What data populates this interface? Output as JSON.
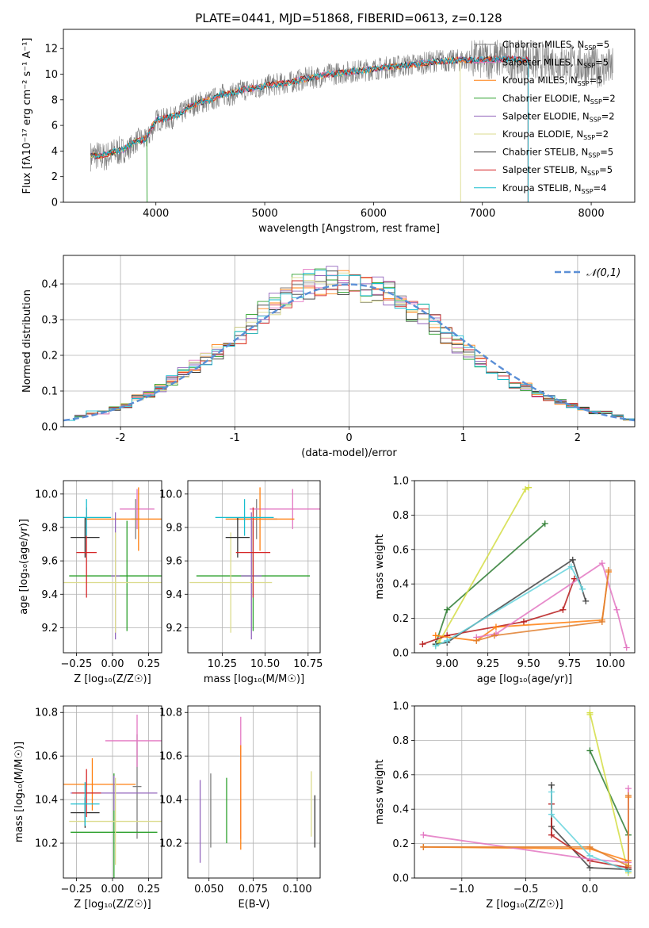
{
  "title": "PLATE=0441, MJD=51868, FIBERID=0613, z=0.128",
  "models": [
    {
      "name": "Chabrier MILES",
      "nssp": "5",
      "color": "#7f7f7f"
    },
    {
      "name": "Salpeter MILES",
      "nssp": "5",
      "color": "#e377c2"
    },
    {
      "name": "Kroupa MILES",
      "nssp": "5",
      "color": "#ff7f0e"
    },
    {
      "name": "Chabrier ELODIE",
      "nssp": "2",
      "color": "#2ca02c"
    },
    {
      "name": "Salpeter ELODIE",
      "nssp": "2",
      "color": "#9467bd"
    },
    {
      "name": "Kroupa ELODIE",
      "nssp": "2",
      "color": "#dbdb8d"
    },
    {
      "name": "Chabrier STELIB",
      "nssp": "5",
      "color": "#333333"
    },
    {
      "name": "Salpeter STELIB",
      "nssp": "5",
      "color": "#d62728"
    },
    {
      "name": "Kroupa STELIB",
      "nssp": "4",
      "color": "#17becf"
    }
  ],
  "chart_data": [
    {
      "id": "spectrum",
      "type": "line",
      "xlabel": "wavelength [Angstrom, rest frame]",
      "ylabel": "Flux [fλ10⁻¹⁷ erg cm⁻² s⁻¹ A⁻¹]",
      "xlim": [
        3150,
        8400
      ],
      "ylim": [
        0,
        13.5
      ],
      "xticks": [
        4000,
        5000,
        6000,
        7000,
        8000
      ],
      "yticks": [
        0,
        2,
        4,
        6,
        8,
        10,
        12
      ],
      "data_color": "#7f7f7f",
      "data_x": [
        3400,
        3450,
        3500,
        3550,
        3600,
        3650,
        3700,
        3750,
        3800,
        3850,
        3900,
        3950,
        4000,
        4100,
        4200,
        4300,
        4400,
        4500,
        4600,
        4700,
        4800,
        4900,
        5000,
        5100,
        5200,
        5300,
        5400,
        5500,
        5600,
        5700,
        5800,
        5900,
        6000,
        6100,
        6200,
        6300,
        6400,
        6500,
        6600,
        6700,
        6800,
        6900,
        7000,
        7100,
        7200,
        7300,
        7400,
        7500,
        7600,
        7700,
        7800,
        7900,
        8000,
        8100,
        8200
      ],
      "data_y": [
        3.6,
        3.7,
        3.5,
        3.6,
        3.8,
        4.0,
        3.9,
        4.2,
        4.6,
        5.0,
        4.8,
        5.3,
        6.4,
        6.5,
        6.7,
        7.4,
        7.8,
        7.9,
        8.4,
        8.4,
        8.8,
        8.8,
        9.1,
        9.2,
        9.3,
        9.5,
        9.7,
        9.8,
        10.0,
        10.1,
        10.2,
        10.3,
        10.4,
        10.5,
        10.6,
        10.7,
        10.8,
        10.9,
        11.1,
        11.0,
        11.1,
        11.1,
        11.1,
        11.2,
        11.2,
        11.0,
        11.1,
        11.0,
        11.0,
        10.9,
        10.8,
        10.7,
        10.6,
        10.5,
        10.5
      ],
      "model_x": [
        3400,
        3500,
        3600,
        3700,
        3800,
        3900,
        4000,
        4100,
        4200,
        4300,
        4400,
        4500,
        4600,
        4700,
        4800,
        4900,
        5000,
        5200,
        5400,
        5600,
        5800,
        6000,
        6200,
        6400,
        6600,
        6800,
        7000,
        7200,
        7400
      ],
      "model_y": [
        3.6,
        3.6,
        3.9,
        4.1,
        4.7,
        4.9,
        6.4,
        6.6,
        6.8,
        7.4,
        7.8,
        8.0,
        8.4,
        8.5,
        8.8,
        8.9,
        9.1,
        9.3,
        9.7,
        10.0,
        10.2,
        10.4,
        10.6,
        10.8,
        11.0,
        11.1,
        11.1,
        11.2,
        11.1
      ],
      "model_end": [
        7420,
        7420,
        7420,
        3920,
        7420,
        6800,
        7420,
        7420,
        7420
      ]
    },
    {
      "id": "residuals",
      "type": "bar",
      "xlabel": "(data-model)/error",
      "ylabel": "Normed distribution",
      "xlim": [
        -2.5,
        2.5
      ],
      "ylim": [
        0,
        0.48
      ],
      "xticks": [
        -2,
        -1,
        0,
        1,
        2
      ],
      "yticks": [
        0.0,
        0.1,
        0.2,
        0.3,
        0.4
      ],
      "legend": "𝒩(0,1)",
      "bin_width": 0.1,
      "bin_centers": [
        -2.45,
        -2.35,
        -2.25,
        -2.15,
        -2.05,
        -1.95,
        -1.85,
        -1.75,
        -1.65,
        -1.55,
        -1.45,
        -1.35,
        -1.25,
        -1.15,
        -1.05,
        -0.95,
        -0.85,
        -0.75,
        -0.65,
        -0.55,
        -0.45,
        -0.35,
        -0.25,
        -0.15,
        -0.05,
        0.05,
        0.15,
        0.25,
        0.35,
        0.45,
        0.55,
        0.65,
        0.75,
        0.85,
        0.95,
        1.05,
        1.15,
        1.25,
        1.35,
        1.45,
        1.55,
        1.65,
        1.75,
        1.85,
        1.95,
        2.05,
        2.15,
        2.25,
        2.35,
        2.45
      ],
      "histogram": [
        0.02,
        0.03,
        0.04,
        0.04,
        0.05,
        0.06,
        0.08,
        0.09,
        0.11,
        0.13,
        0.15,
        0.17,
        0.19,
        0.21,
        0.23,
        0.26,
        0.29,
        0.32,
        0.34,
        0.37,
        0.39,
        0.4,
        0.41,
        0.41,
        0.4,
        0.4,
        0.39,
        0.38,
        0.37,
        0.35,
        0.33,
        0.31,
        0.29,
        0.26,
        0.23,
        0.21,
        0.18,
        0.16,
        0.14,
        0.12,
        0.11,
        0.09,
        0.08,
        0.07,
        0.06,
        0.05,
        0.04,
        0.04,
        0.03,
        0.02
      ],
      "normal_color": "#5b8fd6"
    },
    {
      "id": "age-vs-z",
      "type": "scatter",
      "xlabel": "Z [log₁₀(Z/Z☉)]",
      "ylabel": "age  [log₁₀(age/yr)]",
      "xlim": [
        -0.34,
        0.34
      ],
      "ylim": [
        9.05,
        10.08
      ],
      "xticks": [
        -0.25,
        0.0,
        0.25
      ],
      "xticklabels": [
        "−0.25",
        "0.00",
        "0.25"
      ],
      "yticks": [
        9.2,
        9.4,
        9.6,
        9.8,
        10.0
      ],
      "points": [
        {
          "x": 0.16,
          "y": 9.85,
          "xerr": 0.03,
          "yerr": 0.12
        },
        {
          "x": 0.17,
          "y": 9.91,
          "xerr": 0.12,
          "yerr": 0.12
        },
        {
          "x": 0.18,
          "y": 9.85,
          "xerr": 0.37,
          "yerr": 0.19
        },
        {
          "x": 0.1,
          "y": 9.51,
          "xerr": 0.4,
          "yerr": 0.33
        },
        {
          "x": 0.02,
          "y": 9.51,
          "xerr": 0.03,
          "yerr": 0.38
        },
        {
          "x": 0.02,
          "y": 9.47,
          "xerr": 0.46,
          "yerr": 0.3
        },
        {
          "x": -0.19,
          "y": 9.74,
          "xerr": 0.1,
          "yerr": 0.12
        },
        {
          "x": -0.18,
          "y": 9.65,
          "xerr": 0.07,
          "yerr": 0.27
        },
        {
          "x": -0.18,
          "y": 9.86,
          "xerr": 0.17,
          "yerr": 0.11
        }
      ]
    },
    {
      "id": "age-vs-mass",
      "type": "scatter",
      "xlabel": "mass [log₁₀(M/M☉)]",
      "ylabel": "",
      "xlim": [
        10.05,
        10.82
      ],
      "ylim": [
        9.05,
        10.08
      ],
      "xticks": [
        10.25,
        10.5,
        10.75
      ],
      "xticklabels": [
        "10.25",
        "10.50",
        "10.75"
      ],
      "yticks": [
        9.2,
        9.4,
        9.6,
        9.8,
        10.0
      ],
      "points": [
        {
          "x": 10.45,
          "y": 9.85,
          "xerr": 0.12,
          "yerr": 0.12
        },
        {
          "x": 10.66,
          "y": 9.91,
          "xerr": 0.25,
          "yerr": 0.12
        },
        {
          "x": 10.47,
          "y": 9.85,
          "xerr": 0.2,
          "yerr": 0.19
        },
        {
          "x": 10.43,
          "y": 9.51,
          "xerr": 0.33,
          "yerr": 0.33
        },
        {
          "x": 10.42,
          "y": 9.51,
          "xerr": 0.06,
          "yerr": 0.38
        },
        {
          "x": 10.3,
          "y": 9.47,
          "xerr": 0.24,
          "yerr": 0.3
        },
        {
          "x": 10.34,
          "y": 9.74,
          "xerr": 0.07,
          "yerr": 0.12
        },
        {
          "x": 10.43,
          "y": 9.65,
          "xerr": 0.1,
          "yerr": 0.27
        },
        {
          "x": 10.38,
          "y": 9.86,
          "xerr": 0.17,
          "yerr": 0.11
        }
      ]
    },
    {
      "id": "weight-vs-age",
      "type": "line",
      "xlabel": "age  [log₁₀(age/yr)]",
      "ylabel": "mass weight",
      "xlim": [
        8.8,
        10.15
      ],
      "ylim": [
        0,
        1
      ],
      "xticks": [
        9.0,
        9.25,
        9.5,
        9.75,
        10.0
      ],
      "xticklabels": [
        "9.00",
        "9.25",
        "9.50",
        "9.75",
        "10.00"
      ],
      "yticks": [
        0.0,
        0.2,
        0.4,
        0.6,
        0.8,
        1.0
      ],
      "series": [
        {
          "x": [
            8.93,
            9.0,
            9.6
          ],
          "y": [
            0.05,
            0.25,
            0.75
          ]
        },
        {
          "x": [
            8.93,
            8.95,
            9.48,
            9.5
          ],
          "y": [
            0.04,
            0.06,
            0.95,
            0.96
          ]
        },
        {
          "x": [
            8.93,
            9.0,
            9.77,
            9.85
          ],
          "y": [
            0.05,
            0.06,
            0.54,
            0.3
          ]
        },
        {
          "x": [
            8.85,
            9.0,
            9.47,
            9.71,
            9.78
          ],
          "y": [
            0.05,
            0.1,
            0.18,
            0.25,
            0.43
          ]
        },
        {
          "x": [
            8.93,
            9.18,
            9.3,
            9.95,
            9.99
          ],
          "y": [
            0.1,
            0.07,
            0.15,
            0.19,
            0.47
          ]
        },
        {
          "x": [
            9.18,
            9.3,
            9.95,
            10.04,
            10.1
          ],
          "y": [
            0.09,
            0.11,
            0.52,
            0.25,
            0.03
          ]
        },
        {
          "x": [
            9.18,
            9.29,
            9.95,
            9.99
          ],
          "y": [
            0.07,
            0.1,
            0.18,
            0.48
          ]
        },
        {
          "x": [
            8.93,
            9.0,
            9.76,
            9.83
          ],
          "y": [
            0.04,
            0.07,
            0.5,
            0.37
          ]
        }
      ]
    },
    {
      "id": "mass-vs-z",
      "type": "scatter",
      "xlabel": "Z [log₁₀(Z/Z☉)]",
      "ylabel": "mass [log₁₀(M/M☉)]",
      "xlim": [
        -0.34,
        0.34
      ],
      "ylim": [
        10.04,
        10.83
      ],
      "xticks": [
        -0.25,
        0.0,
        0.25
      ],
      "xticklabels": [
        "−0.25",
        "0.00",
        "0.25"
      ],
      "yticks": [
        10.2,
        10.4,
        10.6,
        10.8
      ],
      "points": [
        {
          "x": 0.17,
          "y": 10.46,
          "xerr": 0.03,
          "yerr": 0.24
        },
        {
          "x": 0.17,
          "y": 10.67,
          "xerr": 0.22,
          "yerr": 0.12
        },
        {
          "x": -0.14,
          "y": 10.47,
          "xerr": 0.3,
          "yerr": 0.12
        },
        {
          "x": 0.01,
          "y": 10.25,
          "xerr": 0.3,
          "yerr": 0.27
        },
        {
          "x": 0.01,
          "y": 10.43,
          "xerr": 0.3,
          "yerr": 0.08
        },
        {
          "x": 0.02,
          "y": 10.3,
          "xerr": 0.32,
          "yerr": 0.2
        },
        {
          "x": -0.19,
          "y": 10.34,
          "xerr": 0.1,
          "yerr": 0.07
        },
        {
          "x": -0.18,
          "y": 10.43,
          "xerr": 0.1,
          "yerr": 0.11
        },
        {
          "x": -0.19,
          "y": 10.38,
          "xerr": 0.1,
          "yerr": 0.1
        }
      ]
    },
    {
      "id": "mass-vs-ebv",
      "type": "scatter",
      "xlabel": "E(B-V)",
      "ylabel": "",
      "xlim": [
        0.038,
        0.113
      ],
      "ylim": [
        10.04,
        10.83
      ],
      "xticks": [
        0.05,
        0.075,
        0.1
      ],
      "xticklabels": [
        "0.050",
        "0.075",
        "0.100"
      ],
      "yticks": [
        10.2,
        10.4,
        10.6,
        10.8
      ],
      "points": [
        {
          "x": 0.051,
          "y": 10.35,
          "xerr": 0,
          "yerr": 0.17
        },
        {
          "x": 0.068,
          "y": 10.5,
          "xerr": 0,
          "yerr": 0.28
        },
        {
          "x": 0.068,
          "y": 10.41,
          "xerr": 0,
          "yerr": 0.24
        },
        {
          "x": 0.06,
          "y": 10.35,
          "xerr": 0,
          "yerr": 0.15
        },
        {
          "x": 0.045,
          "y": 10.3,
          "xerr": 0,
          "yerr": 0.19
        },
        {
          "x": 0.108,
          "y": 10.38,
          "xerr": 0,
          "yerr": 0.15
        },
        {
          "x": 0.11,
          "y": 10.3,
          "xerr": 0,
          "yerr": 0.12
        }
      ]
    },
    {
      "id": "weight-vs-z",
      "type": "line",
      "xlabel": "Z [log₁₀(Z/Z☉)]",
      "ylabel": "mass weight",
      "xlim": [
        -1.37,
        0.35
      ],
      "ylim": [
        0,
        1
      ],
      "xticks": [
        -1.0,
        -0.5,
        0.0
      ],
      "xticklabels": [
        "−1.0",
        "−0.5",
        "0.0"
      ],
      "yticks": [
        0.0,
        0.2,
        0.4,
        0.6,
        0.8,
        1.0
      ],
      "series": [
        {
          "x": [
            0.0,
            0.3,
            0.3
          ],
          "y": [
            0.74,
            0.25,
            0.05
          ]
        },
        {
          "x": [
            0.0,
            0.0,
            0.3
          ],
          "y": [
            0.95,
            0.96,
            0.03
          ]
        },
        {
          "x": [
            -0.3,
            -0.3,
            0.0,
            0.3
          ],
          "y": [
            0.54,
            0.3,
            0.06,
            0.05
          ]
        },
        {
          "x": [
            -0.3,
            -0.3,
            0.0,
            0.3
          ],
          "y": [
            0.43,
            0.25,
            0.1,
            0.06
          ]
        },
        {
          "x": [
            -1.3,
            0.0,
            0.3,
            0.3
          ],
          "y": [
            0.18,
            0.17,
            0.1,
            0.47
          ]
        },
        {
          "x": [
            -1.3,
            0.0,
            0.3,
            0.3
          ],
          "y": [
            0.25,
            0.11,
            0.09,
            0.52
          ]
        },
        {
          "x": [
            -1.3,
            0.0,
            0.3,
            0.3
          ],
          "y": [
            0.18,
            0.18,
            0.07,
            0.48
          ]
        },
        {
          "x": [
            -0.3,
            -0.3,
            0.0,
            0.3
          ],
          "y": [
            0.5,
            0.37,
            0.13,
            0.04
          ]
        }
      ]
    }
  ]
}
